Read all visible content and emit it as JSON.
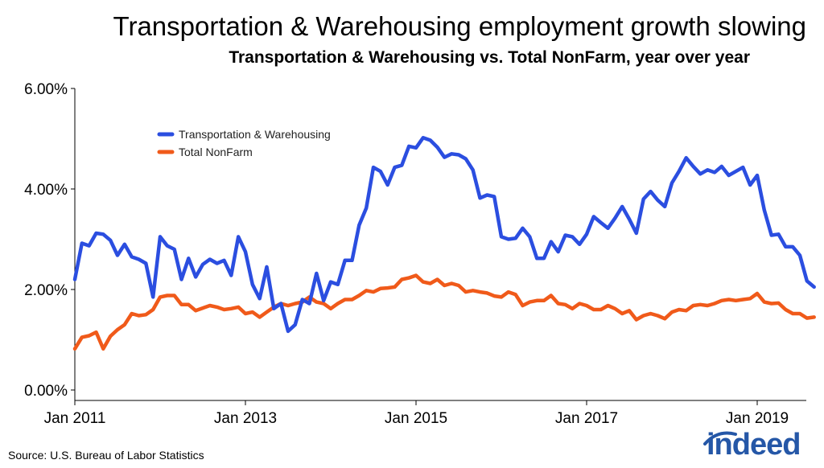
{
  "chart_data": {
    "type": "line",
    "title": "Transportation & Warehousing employment growth slowing",
    "subtitle": "Transportation & Warehousing vs. Total NonFarm, year over year",
    "xlabel": "",
    "ylabel": "",
    "ylim": [
      0,
      6
    ],
    "yticks": [
      "0.00%",
      "2.00%",
      "4.00%",
      "6.00%"
    ],
    "xticks": [
      "Jan 2011",
      "Jan 2013",
      "Jan 2015",
      "Jan 2017",
      "Jan 2019"
    ],
    "xtick_months": [
      0,
      24,
      48,
      72,
      96
    ],
    "x_start": "Jan 2011",
    "legend_position": "top-left",
    "grid": false,
    "series": [
      {
        "name": "Transportation & Warehousing",
        "color": "#2b4ee0",
        "values": [
          2.2,
          2.92,
          2.87,
          3.12,
          3.1,
          2.98,
          2.68,
          2.9,
          2.65,
          2.6,
          2.52,
          1.85,
          3.05,
          2.87,
          2.8,
          2.2,
          2.62,
          2.25,
          2.5,
          2.6,
          2.52,
          2.58,
          2.28,
          3.05,
          2.75,
          2.1,
          1.82,
          2.45,
          1.62,
          1.72,
          1.17,
          1.3,
          1.8,
          1.72,
          2.32,
          1.78,
          2.15,
          2.1,
          2.58,
          2.58,
          3.28,
          3.62,
          4.43,
          4.35,
          4.08,
          4.43,
          4.47,
          4.85,
          4.82,
          5.02,
          4.97,
          4.83,
          4.63,
          4.7,
          4.68,
          4.6,
          4.38,
          3.82,
          3.88,
          3.85,
          3.05,
          3.0,
          3.02,
          3.22,
          3.05,
          2.62,
          2.62,
          2.95,
          2.75,
          3.08,
          3.05,
          2.9,
          3.1,
          3.45,
          3.33,
          3.22,
          3.42,
          3.65,
          3.4,
          3.12,
          3.8,
          3.95,
          3.78,
          3.65,
          4.12,
          4.35,
          4.62,
          4.45,
          4.3,
          4.38,
          4.33,
          4.45,
          4.27,
          4.35,
          4.43,
          4.08,
          4.27,
          3.58,
          3.08,
          3.1,
          2.85,
          2.85,
          2.68,
          2.17,
          2.05
        ]
      },
      {
        "name": "Total NonFarm",
        "color": "#f05a1a",
        "values": [
          0.82,
          1.05,
          1.08,
          1.15,
          0.82,
          1.07,
          1.2,
          1.3,
          1.52,
          1.48,
          1.5,
          1.6,
          1.85,
          1.88,
          1.88,
          1.7,
          1.7,
          1.58,
          1.63,
          1.68,
          1.65,
          1.6,
          1.62,
          1.65,
          1.52,
          1.55,
          1.45,
          1.55,
          1.65,
          1.72,
          1.68,
          1.72,
          1.75,
          1.85,
          1.75,
          1.72,
          1.62,
          1.72,
          1.8,
          1.8,
          1.88,
          1.98,
          1.95,
          2.02,
          2.03,
          2.05,
          2.2,
          2.23,
          2.28,
          2.15,
          2.12,
          2.2,
          2.08,
          2.12,
          2.08,
          1.95,
          1.98,
          1.95,
          1.93,
          1.87,
          1.85,
          1.95,
          1.9,
          1.68,
          1.75,
          1.78,
          1.78,
          1.88,
          1.72,
          1.7,
          1.62,
          1.72,
          1.68,
          1.6,
          1.6,
          1.68,
          1.62,
          1.52,
          1.58,
          1.4,
          1.48,
          1.52,
          1.48,
          1.42,
          1.55,
          1.6,
          1.58,
          1.68,
          1.7,
          1.68,
          1.72,
          1.78,
          1.8,
          1.78,
          1.8,
          1.82,
          1.92,
          1.75,
          1.72,
          1.73,
          1.6,
          1.52,
          1.52,
          1.43,
          1.45
        ]
      }
    ]
  },
  "footer": {
    "source": "Source: U.S. Bureau of Labor Statistics",
    "logo_text": "indeed"
  }
}
